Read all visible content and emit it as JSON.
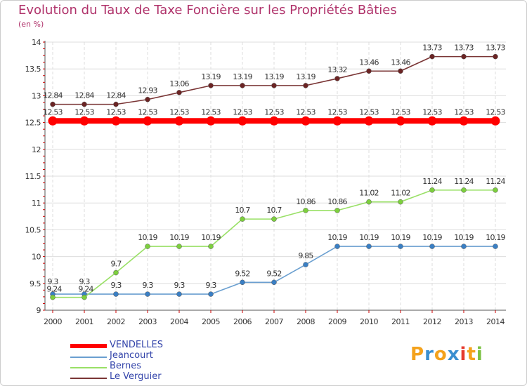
{
  "title": "Evolution du Taux de Taxe Foncière sur les Propriétés Bâties",
  "unit_label": "(en %)",
  "logo": {
    "letters": [
      "P",
      "r",
      "o",
      "x",
      "i",
      "t",
      "i"
    ],
    "colors": [
      "#f4a21c",
      "#3a8fd0",
      "#f4a21c",
      "#3a8fd0",
      "#e63a2e",
      "#f4a21c",
      "#7bc142"
    ]
  },
  "chart_data": {
    "type": "line",
    "title": "Evolution du Taux de Taxe Foncière sur les Propriétés Bâties",
    "ylabel": "(en %)",
    "xlabel": "",
    "x": [
      2000,
      2001,
      2002,
      2003,
      2004,
      2005,
      2006,
      2007,
      2008,
      2009,
      2010,
      2011,
      2012,
      2013,
      2014
    ],
    "xticklabels": [
      "2000",
      "2001",
      "2002",
      "2003",
      "2004",
      "2005",
      "2006",
      "2007",
      "2008",
      "2009",
      "2010",
      "2011",
      "2012",
      "2013",
      "2014"
    ],
    "ylim": [
      9,
      14
    ],
    "yticks": [
      9,
      9.5,
      10,
      10.5,
      11,
      11.5,
      12,
      12.5,
      13,
      13.5,
      14
    ],
    "yticklabels": [
      "9",
      "9.5",
      "10",
      "10.5",
      "11",
      "11.5",
      "12",
      "12.5",
      "13",
      "13.5",
      "14"
    ],
    "legend_position": "bottom-left",
    "series": [
      {
        "name": "VENDELLES",
        "color": "#ff0000",
        "marker": "#ff0000",
        "style": "thick",
        "values": [
          12.53,
          12.53,
          12.53,
          12.53,
          12.53,
          12.53,
          12.53,
          12.53,
          12.53,
          12.53,
          12.53,
          12.53,
          12.53,
          12.53,
          12.53
        ],
        "labels": [
          "12.53",
          "12.53",
          "12.53",
          "12.53",
          "12.53",
          "12.53",
          "12.53",
          "12.53",
          "12.53",
          "12.53",
          "12.53",
          "12.53",
          "12.53",
          "12.53",
          "12.53"
        ]
      },
      {
        "name": "Jeancourt",
        "color": "#6a9fd0",
        "marker": "#3a7fc4",
        "style": "thin",
        "values": [
          9.3,
          9.3,
          9.3,
          9.3,
          9.3,
          9.3,
          9.52,
          9.52,
          9.85,
          10.19,
          10.19,
          10.19,
          10.19,
          10.19,
          10.19
        ],
        "labels": [
          "9.3",
          "9.3",
          "9.3",
          "9.3",
          "9.3",
          "9.3",
          "9.52",
          "9.52",
          "9.85",
          "10.19",
          "10.19",
          "10.19",
          "10.19",
          "10.19",
          "10.19"
        ]
      },
      {
        "name": "Bernes",
        "color": "#99e066",
        "marker": "#7dcf3e",
        "style": "thin",
        "values": [
          9.24,
          9.24,
          9.7,
          10.19,
          10.19,
          10.19,
          10.7,
          10.7,
          10.86,
          10.86,
          11.02,
          11.02,
          11.24,
          11.24,
          11.24
        ],
        "labels": [
          "9.24",
          "9.24",
          "9.7",
          "10.19",
          "10.19",
          "10.19",
          "10.7",
          "10.7",
          "10.86",
          "10.86",
          "11.02",
          "11.02",
          "11.24",
          "11.24",
          "11.24"
        ]
      },
      {
        "name": "Le Verguier",
        "color": "#7a3535",
        "marker": "#6b2424",
        "style": "thin",
        "values": [
          12.84,
          12.84,
          12.84,
          12.93,
          13.06,
          13.19,
          13.19,
          13.19,
          13.19,
          13.32,
          13.46,
          13.46,
          13.73,
          13.73,
          13.73
        ],
        "labels": [
          "12.84",
          "12.84",
          "12.84",
          "12.93",
          "13.06",
          "13.19",
          "13.19",
          "13.19",
          "13.19",
          "13.32",
          "13.46",
          "13.46",
          "13.73",
          "13.73",
          "13.73"
        ]
      }
    ]
  }
}
